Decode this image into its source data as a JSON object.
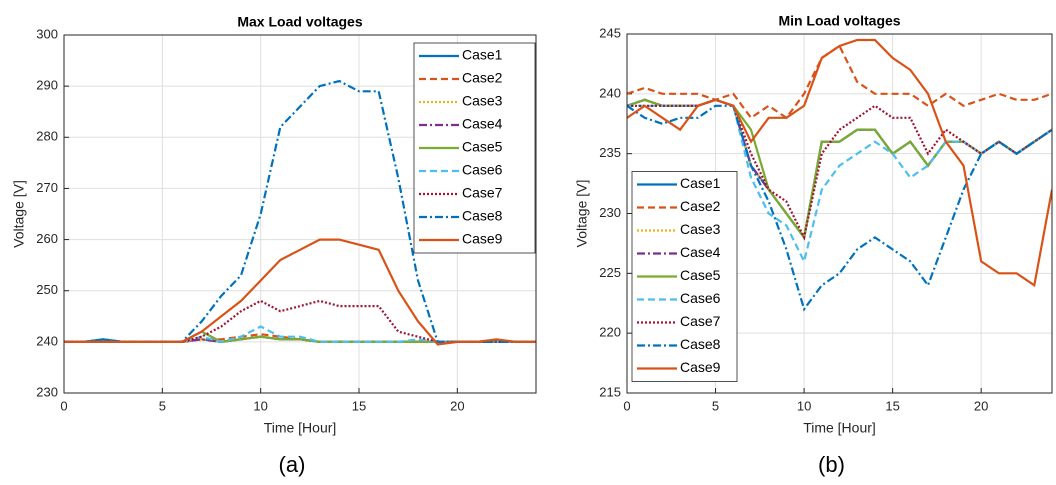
{
  "chart_data": [
    {
      "type": "line",
      "title": "Max Load voltages",
      "x_label": "Time [Hour]",
      "y_label": "Voltage [V]",
      "caption": "(a)",
      "x": [
        0,
        1,
        2,
        3,
        4,
        5,
        6,
        7,
        8,
        9,
        10,
        11,
        12,
        13,
        14,
        15,
        16,
        17,
        18,
        19,
        20,
        21,
        22,
        23,
        24
      ],
      "xlim": [
        0,
        24
      ],
      "xticks": [
        0,
        5,
        10,
        15,
        20
      ],
      "ylim": [
        230,
        300
      ],
      "yticks": [
        230,
        240,
        250,
        260,
        270,
        280,
        290,
        300
      ],
      "grid": true,
      "legend": "upper-right",
      "series": [
        {
          "name": "Case1",
          "color": "#0072BD",
          "line_style": "solid",
          "values": [
            240,
            240,
            240.5,
            240,
            240,
            240,
            240,
            240.5,
            240,
            240.5,
            241,
            240.5,
            240.5,
            240,
            240,
            240,
            240,
            240,
            240,
            240,
            240,
            240,
            240,
            240,
            240
          ]
        },
        {
          "name": "Case2",
          "color": "#D95319",
          "line_style": "dashed",
          "values": [
            240,
            240,
            240,
            240,
            240,
            240,
            240,
            240.5,
            240.5,
            241,
            241.5,
            241,
            240.5,
            240,
            240,
            240,
            240,
            240,
            240,
            240,
            240,
            240,
            240,
            240,
            240
          ]
        },
        {
          "name": "Case3",
          "color": "#EDB120",
          "line_style": "dotted",
          "values": [
            240,
            240,
            240,
            240,
            240,
            240,
            240,
            240.5,
            240,
            240.5,
            241,
            240.5,
            240.5,
            240,
            240,
            240,
            240,
            240,
            240,
            240,
            240,
            240,
            240,
            240,
            240
          ]
        },
        {
          "name": "Case4",
          "color": "#7E2F8E",
          "line_style": "dashdot",
          "values": [
            240,
            240,
            240,
            240,
            240,
            240,
            240,
            240.5,
            240,
            240.5,
            241,
            240.5,
            240.5,
            240,
            240,
            240,
            240,
            240,
            240,
            240,
            240,
            240,
            240,
            240,
            240
          ]
        },
        {
          "name": "Case5",
          "color": "#77AC30",
          "line_style": "solid",
          "values": [
            240,
            240,
            240,
            240,
            240,
            240,
            240,
            242,
            240,
            240.5,
            241,
            240.5,
            240.5,
            240,
            240,
            240,
            240,
            240,
            240,
            240,
            240,
            240,
            240,
            240,
            240
          ]
        },
        {
          "name": "Case6",
          "color": "#4DBEEE",
          "line_style": "dashed",
          "values": [
            240,
            240,
            240,
            240,
            240,
            240,
            240,
            241,
            240,
            241,
            243,
            241,
            241,
            240,
            240,
            240,
            240,
            240,
            240.5,
            240,
            240,
            240,
            240,
            240,
            240
          ]
        },
        {
          "name": "Case7",
          "color": "#A2142F",
          "line_style": "dotted",
          "values": [
            240,
            240,
            240,
            240,
            240,
            240,
            240,
            241,
            243,
            246,
            248,
            246,
            247,
            248,
            247,
            247,
            247,
            242,
            241,
            240,
            240,
            240,
            240,
            240,
            240
          ]
        },
        {
          "name": "Case8",
          "color": "#0072BD",
          "line_style": "dashdot",
          "values": [
            240,
            240,
            240.5,
            240,
            240,
            240,
            240,
            244,
            249,
            253,
            265,
            282,
            286,
            290,
            291,
            289,
            289,
            272,
            252,
            240,
            240,
            240,
            240,
            240,
            240
          ]
        },
        {
          "name": "Case9",
          "color": "#D95319",
          "line_style": "solid",
          "values": [
            240,
            240,
            240,
            240,
            240,
            240,
            240,
            242,
            245,
            248,
            252,
            256,
            258,
            260,
            260,
            259,
            258,
            250,
            244,
            239.5,
            240,
            240,
            240.5,
            240,
            240
          ]
        }
      ]
    },
    {
      "type": "line",
      "title": "Min Load voltages",
      "x_label": "Time [Hour]",
      "y_label": "Voltage [V]",
      "caption": "(b)",
      "x": [
        0,
        1,
        2,
        3,
        4,
        5,
        6,
        7,
        8,
        9,
        10,
        11,
        12,
        13,
        14,
        15,
        16,
        17,
        18,
        19,
        20,
        21,
        22,
        23,
        24
      ],
      "xlim": [
        0,
        24
      ],
      "xticks": [
        0,
        5,
        10,
        15,
        20
      ],
      "ylim": [
        215,
        245
      ],
      "yticks": [
        215,
        220,
        225,
        230,
        235,
        240,
        245
      ],
      "grid": true,
      "legend": "center-left",
      "series": [
        {
          "name": "Case1",
          "color": "#0072BD",
          "line_style": "solid",
          "values": [
            239,
            239.5,
            239,
            239,
            239,
            239.5,
            239,
            234,
            232,
            230,
            228,
            236,
            236,
            237,
            237,
            235,
            236,
            234,
            236,
            236,
            235,
            236,
            235,
            236,
            237
          ]
        },
        {
          "name": "Case2",
          "color": "#D95319",
          "line_style": "dashed",
          "values": [
            240,
            240.5,
            240,
            240,
            240,
            239.5,
            240,
            238,
            239,
            238,
            240,
            243,
            244,
            241,
            240,
            240,
            240,
            239,
            240,
            239,
            239.5,
            240,
            239.5,
            239.5,
            240
          ]
        },
        {
          "name": "Case3",
          "color": "#EDB120",
          "line_style": "dotted",
          "values": [
            239,
            239.5,
            239,
            239,
            239,
            239.5,
            239,
            234,
            232,
            230,
            228,
            236,
            236,
            237,
            237,
            235,
            236,
            234,
            236,
            236,
            235,
            236,
            235,
            236,
            237
          ]
        },
        {
          "name": "Case4",
          "color": "#7E2F8E",
          "line_style": "dashdot",
          "values": [
            239,
            239.5,
            239,
            239,
            239,
            239.5,
            239,
            234,
            232,
            230,
            228,
            236,
            236,
            237,
            237,
            235,
            236,
            234,
            236,
            236,
            235,
            236,
            235,
            236,
            237
          ]
        },
        {
          "name": "Case5",
          "color": "#77AC30",
          "line_style": "solid",
          "values": [
            239,
            239.5,
            239,
            239,
            239,
            239.5,
            239,
            237,
            232,
            230,
            228,
            236,
            236,
            237,
            237,
            235,
            236,
            234,
            236,
            236,
            235,
            236,
            235,
            236,
            237
          ]
        },
        {
          "name": "Case6",
          "color": "#4DBEEE",
          "line_style": "dashed",
          "values": [
            239,
            239,
            239,
            239,
            239,
            239.5,
            239,
            233,
            230,
            229,
            226,
            232,
            234,
            235,
            236,
            235,
            233,
            234,
            236,
            236,
            235,
            236,
            235,
            236,
            237
          ]
        },
        {
          "name": "Case7",
          "color": "#A2142F",
          "line_style": "dotted",
          "values": [
            239,
            239,
            239,
            239,
            239,
            239.5,
            239,
            235,
            232,
            231,
            228,
            235,
            237,
            238,
            239,
            238,
            238,
            235,
            237,
            236,
            235,
            236,
            235,
            236,
            237
          ]
        },
        {
          "name": "Case8",
          "color": "#0072BD",
          "line_style": "dashdot",
          "values": [
            239,
            238,
            237.5,
            238,
            238,
            239,
            239,
            234,
            231,
            227,
            222,
            224,
            225,
            227,
            228,
            227,
            226,
            224,
            228,
            232,
            235,
            236,
            235,
            236,
            237
          ]
        },
        {
          "name": "Case9",
          "color": "#D95319",
          "line_style": "solid",
          "values": [
            238,
            239,
            238,
            237,
            239,
            239.5,
            239,
            236,
            238,
            238,
            239,
            243,
            244,
            244.5,
            244.5,
            243,
            242,
            240,
            236,
            234,
            226,
            225,
            225,
            224,
            232
          ]
        }
      ]
    }
  ]
}
